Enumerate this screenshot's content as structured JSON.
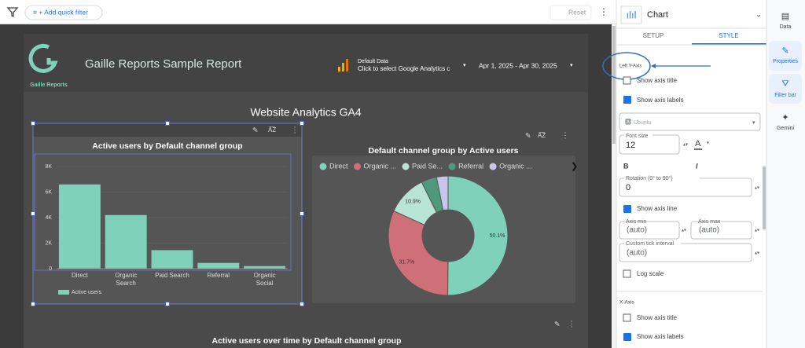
{
  "toolbar": {
    "add_filter": "+ Add quick filter",
    "reset": "Reset"
  },
  "report": {
    "brand": "Gaille Reports",
    "title": "Gaille Reports Sample Report",
    "data_source": {
      "name": "Default Data",
      "hint": "Click to select Google Analytics c"
    },
    "date_range": "Apr 1, 2025 - Apr 30, 2025",
    "section_title": "Website Analytics GA4",
    "bottom_chart_title": "Active users over time by Default channel group"
  },
  "chart_data": [
    {
      "type": "bar",
      "title": "Active users by Default channel group",
      "categories": [
        "Direct",
        "Organic Search",
        "Paid Search",
        "Referral",
        "Organic Social"
      ],
      "series": [
        {
          "name": "Active users",
          "color": "#7fd1b9",
          "values": [
            6600,
            4200,
            1450,
            450,
            200
          ]
        }
      ],
      "ylim": [
        0,
        8000
      ],
      "yticks": [
        0,
        {
          "value": 2000,
          "label": "2K"
        },
        {
          "value": 4000,
          "label": "4K"
        },
        {
          "value": 6000,
          "label": "6K"
        },
        {
          "value": 8000,
          "label": "8K"
        }
      ],
      "legend": "bottom-left"
    },
    {
      "type": "pie",
      "title": "Default channel group by Active users",
      "categories": [
        "Direct",
        "Organic ...",
        "Paid Se...",
        "Referral",
        "Organic ..."
      ],
      "values": [
        50.1,
        31.7,
        10.9,
        4.2,
        3.1
      ],
      "value_labels": [
        "50.1%",
        "31.7%",
        "10.9%",
        null,
        null
      ],
      "colors": [
        "#7fd1b9",
        "#cf6f78",
        "#b7e4d4",
        "#4f9a7c",
        "#c9c6ea"
      ],
      "donut": true,
      "legend": "top"
    }
  ],
  "panel": {
    "title": "Chart",
    "tabs": [
      "SETUP",
      "STYLE"
    ],
    "section": "Left Y-Axis",
    "show_axis_title": "Show axis title",
    "show_axis_labels": "Show axis labels",
    "font": "Ubuntu",
    "font_size_label": "Font size",
    "font_size": "12",
    "color_button": "A",
    "bold": "B",
    "italic": "I",
    "rotation_label": "Rotation (0° to 90°)",
    "rotation": "0",
    "show_axis_line": "Show axis line",
    "axis_min_label": "Axis min",
    "axis_min": "(auto)",
    "axis_max_label": "Axis max",
    "axis_max": "(auto)",
    "tick_interval_label": "Custom tick interval",
    "tick_interval": "(auto)",
    "log_scale": "Log scale",
    "x_section": "X-Axis",
    "x_show_axis_title": "Show axis title",
    "x_show_axis_labels": "Show axis labels"
  },
  "sidebar": [
    "Data",
    "Properties",
    "Filter bar",
    "Gemini"
  ]
}
